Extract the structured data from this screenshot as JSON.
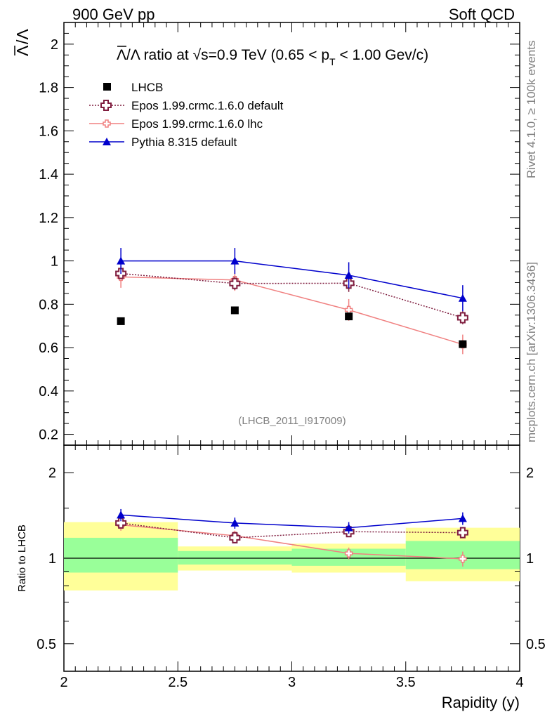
{
  "header": {
    "left": "900 GeV pp",
    "right": "Soft QCD"
  },
  "side_labels": {
    "rivet": "Rivet 4.1.0, ≥ 100k events",
    "mcplots": "mcplots.cern.ch [arXiv:1306.3436]"
  },
  "analysis_id": "(LHCB_2011_I917009)",
  "chart_data": [
    {
      "type": "scatter",
      "panel": "main",
      "title": "Λ̅/Λ ratio at √s=0.9 TeV (0.65 < p_T < 1.00 Gev/c)",
      "title_parts": {
        "pre": "Λ",
        "mid": "/Λ ratio at √s=0.9 TeV (0.65 < p",
        "sub": "T",
        "post": " < 1.00 Gev/c)"
      },
      "ylabel": "Λ̅/Λ",
      "ylabel_parts": {
        "bar": "Λ",
        "rest": "/Λ"
      },
      "xlabel": "Rapidity (y)",
      "xlim": [
        2,
        4
      ],
      "ylim": [
        0.15,
        2.1
      ],
      "x_ticks": [
        "2",
        "2.5",
        "3",
        "3.5",
        "4"
      ],
      "y_ticks": [
        "0.2",
        "0.4",
        "0.6",
        "0.8",
        "1",
        "1.2",
        "1.4",
        "1.6",
        "1.8",
        "2"
      ],
      "legend_position": "top-left",
      "series": [
        {
          "name": "LHCB",
          "color": "#000000",
          "marker": "square",
          "x": [
            2.25,
            2.75,
            3.25,
            3.75
          ],
          "values": [
            0.722,
            0.772,
            0.744,
            0.616
          ],
          "err": [
            0.0,
            0.0,
            0.0,
            0.0
          ]
        },
        {
          "name": "Epos 1.99.crmc.1.6.0 default",
          "color": "#7f1d3f",
          "marker": "open-cross",
          "line": "dotted",
          "x": [
            2.25,
            2.75,
            3.25,
            3.75
          ],
          "values": [
            0.942,
            0.896,
            0.897,
            0.738
          ],
          "err": [
            0.02,
            0.03,
            0.04,
            0.03
          ]
        },
        {
          "name": "Epos 1.99.crmc.1.6.0 lhc",
          "color": "#f08080",
          "marker": "small-cross",
          "line": "solid",
          "x": [
            2.25,
            2.75,
            3.25,
            3.75
          ],
          "values": [
            0.926,
            0.912,
            0.774,
            0.615
          ],
          "err": [
            0.05,
            0.05,
            0.05,
            0.045
          ]
        },
        {
          "name": "Pythia 8.315 default",
          "color": "#0000cc",
          "marker": "triangle",
          "line": "solid",
          "x": [
            2.25,
            2.75,
            3.25,
            3.75
          ],
          "values": [
            1.0,
            1.0,
            0.934,
            0.828
          ],
          "err": [
            0.06,
            0.06,
            0.06,
            0.06
          ]
        }
      ]
    },
    {
      "type": "scatter",
      "panel": "ratio",
      "ylabel": "Ratio to LHCB",
      "yscale": "log",
      "ylim": [
        0.4,
        2.5
      ],
      "y_ticks": [
        "0.5",
        "1",
        "2"
      ],
      "bands": {
        "x_edges": [
          [
            2.0,
            2.5
          ],
          [
            2.5,
            3.0
          ],
          [
            3.0,
            3.5
          ],
          [
            3.5,
            4.0
          ]
        ],
        "yellow": [
          [
            0.77,
            1.34
          ],
          [
            0.905,
            1.1
          ],
          [
            0.89,
            1.125
          ],
          [
            0.83,
            1.28
          ]
        ],
        "green": [
          [
            0.89,
            1.18
          ],
          [
            0.95,
            1.06
          ],
          [
            0.94,
            1.08
          ],
          [
            0.915,
            1.15
          ]
        ]
      },
      "series": [
        {
          "name": "Epos 1.99.crmc.1.6.0 default",
          "color": "#7f1d3f",
          "x": [
            2.25,
            2.75,
            3.25,
            3.75
          ],
          "values": [
            1.33,
            1.18,
            1.24,
            1.23
          ],
          "err": [
            0.02,
            0.03,
            0.04,
            0.03
          ]
        },
        {
          "name": "Epos 1.99.crmc.1.6.0 lhc",
          "color": "#f08080",
          "x": [
            2.25,
            2.75,
            3.25,
            3.75
          ],
          "values": [
            1.31,
            1.2,
            1.04,
            0.995
          ],
          "err": [
            0.06,
            0.05,
            0.05,
            0.06
          ]
        },
        {
          "name": "Pythia 8.315 default",
          "color": "#0000cc",
          "x": [
            2.25,
            2.75,
            3.25,
            3.75
          ],
          "values": [
            1.42,
            1.33,
            1.28,
            1.38
          ],
          "err": [
            0.07,
            0.06,
            0.06,
            0.07
          ]
        }
      ]
    }
  ]
}
